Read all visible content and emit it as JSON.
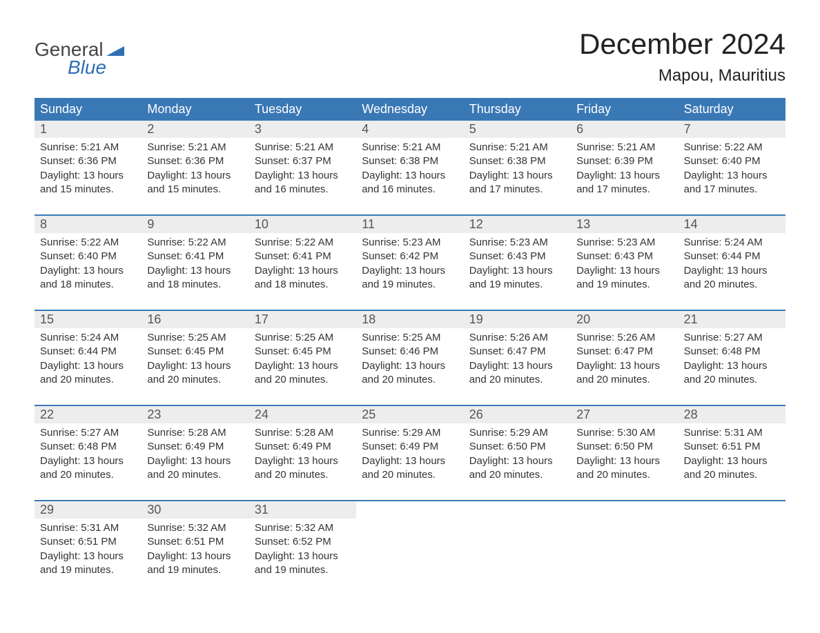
{
  "logo": {
    "top": "General",
    "bottom": "Blue"
  },
  "title": "December 2024",
  "location": "Mapou, Mauritius",
  "colors": {
    "header_bg": "#3a78b5",
    "header_text": "#ffffff",
    "accent": "#2f6fb3",
    "body_text": "#333333",
    "daynum_bg": "#ededed",
    "daynum_text": "#555555",
    "week_border": "#3a78b5",
    "background": "#ffffff"
  },
  "weekdays": [
    "Sunday",
    "Monday",
    "Tuesday",
    "Wednesday",
    "Thursday",
    "Friday",
    "Saturday"
  ],
  "weeks": [
    [
      {
        "n": "1",
        "sunrise": "Sunrise: 5:21 AM",
        "sunset": "Sunset: 6:36 PM",
        "daylight": "Daylight: 13 hours\nand 15 minutes."
      },
      {
        "n": "2",
        "sunrise": "Sunrise: 5:21 AM",
        "sunset": "Sunset: 6:36 PM",
        "daylight": "Daylight: 13 hours\nand 15 minutes."
      },
      {
        "n": "3",
        "sunrise": "Sunrise: 5:21 AM",
        "sunset": "Sunset: 6:37 PM",
        "daylight": "Daylight: 13 hours\nand 16 minutes."
      },
      {
        "n": "4",
        "sunrise": "Sunrise: 5:21 AM",
        "sunset": "Sunset: 6:38 PM",
        "daylight": "Daylight: 13 hours\nand 16 minutes."
      },
      {
        "n": "5",
        "sunrise": "Sunrise: 5:21 AM",
        "sunset": "Sunset: 6:38 PM",
        "daylight": "Daylight: 13 hours\nand 17 minutes."
      },
      {
        "n": "6",
        "sunrise": "Sunrise: 5:21 AM",
        "sunset": "Sunset: 6:39 PM",
        "daylight": "Daylight: 13 hours\nand 17 minutes."
      },
      {
        "n": "7",
        "sunrise": "Sunrise: 5:22 AM",
        "sunset": "Sunset: 6:40 PM",
        "daylight": "Daylight: 13 hours\nand 17 minutes."
      }
    ],
    [
      {
        "n": "8",
        "sunrise": "Sunrise: 5:22 AM",
        "sunset": "Sunset: 6:40 PM",
        "daylight": "Daylight: 13 hours\nand 18 minutes."
      },
      {
        "n": "9",
        "sunrise": "Sunrise: 5:22 AM",
        "sunset": "Sunset: 6:41 PM",
        "daylight": "Daylight: 13 hours\nand 18 minutes."
      },
      {
        "n": "10",
        "sunrise": "Sunrise: 5:22 AM",
        "sunset": "Sunset: 6:41 PM",
        "daylight": "Daylight: 13 hours\nand 18 minutes."
      },
      {
        "n": "11",
        "sunrise": "Sunrise: 5:23 AM",
        "sunset": "Sunset: 6:42 PM",
        "daylight": "Daylight: 13 hours\nand 19 minutes."
      },
      {
        "n": "12",
        "sunrise": "Sunrise: 5:23 AM",
        "sunset": "Sunset: 6:43 PM",
        "daylight": "Daylight: 13 hours\nand 19 minutes."
      },
      {
        "n": "13",
        "sunrise": "Sunrise: 5:23 AM",
        "sunset": "Sunset: 6:43 PM",
        "daylight": "Daylight: 13 hours\nand 19 minutes."
      },
      {
        "n": "14",
        "sunrise": "Sunrise: 5:24 AM",
        "sunset": "Sunset: 6:44 PM",
        "daylight": "Daylight: 13 hours\nand 20 minutes."
      }
    ],
    [
      {
        "n": "15",
        "sunrise": "Sunrise: 5:24 AM",
        "sunset": "Sunset: 6:44 PM",
        "daylight": "Daylight: 13 hours\nand 20 minutes."
      },
      {
        "n": "16",
        "sunrise": "Sunrise: 5:25 AM",
        "sunset": "Sunset: 6:45 PM",
        "daylight": "Daylight: 13 hours\nand 20 minutes."
      },
      {
        "n": "17",
        "sunrise": "Sunrise: 5:25 AM",
        "sunset": "Sunset: 6:45 PM",
        "daylight": "Daylight: 13 hours\nand 20 minutes."
      },
      {
        "n": "18",
        "sunrise": "Sunrise: 5:25 AM",
        "sunset": "Sunset: 6:46 PM",
        "daylight": "Daylight: 13 hours\nand 20 minutes."
      },
      {
        "n": "19",
        "sunrise": "Sunrise: 5:26 AM",
        "sunset": "Sunset: 6:47 PM",
        "daylight": "Daylight: 13 hours\nand 20 minutes."
      },
      {
        "n": "20",
        "sunrise": "Sunrise: 5:26 AM",
        "sunset": "Sunset: 6:47 PM",
        "daylight": "Daylight: 13 hours\nand 20 minutes."
      },
      {
        "n": "21",
        "sunrise": "Sunrise: 5:27 AM",
        "sunset": "Sunset: 6:48 PM",
        "daylight": "Daylight: 13 hours\nand 20 minutes."
      }
    ],
    [
      {
        "n": "22",
        "sunrise": "Sunrise: 5:27 AM",
        "sunset": "Sunset: 6:48 PM",
        "daylight": "Daylight: 13 hours\nand 20 minutes."
      },
      {
        "n": "23",
        "sunrise": "Sunrise: 5:28 AM",
        "sunset": "Sunset: 6:49 PM",
        "daylight": "Daylight: 13 hours\nand 20 minutes."
      },
      {
        "n": "24",
        "sunrise": "Sunrise: 5:28 AM",
        "sunset": "Sunset: 6:49 PM",
        "daylight": "Daylight: 13 hours\nand 20 minutes."
      },
      {
        "n": "25",
        "sunrise": "Sunrise: 5:29 AM",
        "sunset": "Sunset: 6:49 PM",
        "daylight": "Daylight: 13 hours\nand 20 minutes."
      },
      {
        "n": "26",
        "sunrise": "Sunrise: 5:29 AM",
        "sunset": "Sunset: 6:50 PM",
        "daylight": "Daylight: 13 hours\nand 20 minutes."
      },
      {
        "n": "27",
        "sunrise": "Sunrise: 5:30 AM",
        "sunset": "Sunset: 6:50 PM",
        "daylight": "Daylight: 13 hours\nand 20 minutes."
      },
      {
        "n": "28",
        "sunrise": "Sunrise: 5:31 AM",
        "sunset": "Sunset: 6:51 PM",
        "daylight": "Daylight: 13 hours\nand 20 minutes."
      }
    ],
    [
      {
        "n": "29",
        "sunrise": "Sunrise: 5:31 AM",
        "sunset": "Sunset: 6:51 PM",
        "daylight": "Daylight: 13 hours\nand 19 minutes."
      },
      {
        "n": "30",
        "sunrise": "Sunrise: 5:32 AM",
        "sunset": "Sunset: 6:51 PM",
        "daylight": "Daylight: 13 hours\nand 19 minutes."
      },
      {
        "n": "31",
        "sunrise": "Sunrise: 5:32 AM",
        "sunset": "Sunset: 6:52 PM",
        "daylight": "Daylight: 13 hours\nand 19 minutes."
      },
      null,
      null,
      null,
      null
    ]
  ]
}
